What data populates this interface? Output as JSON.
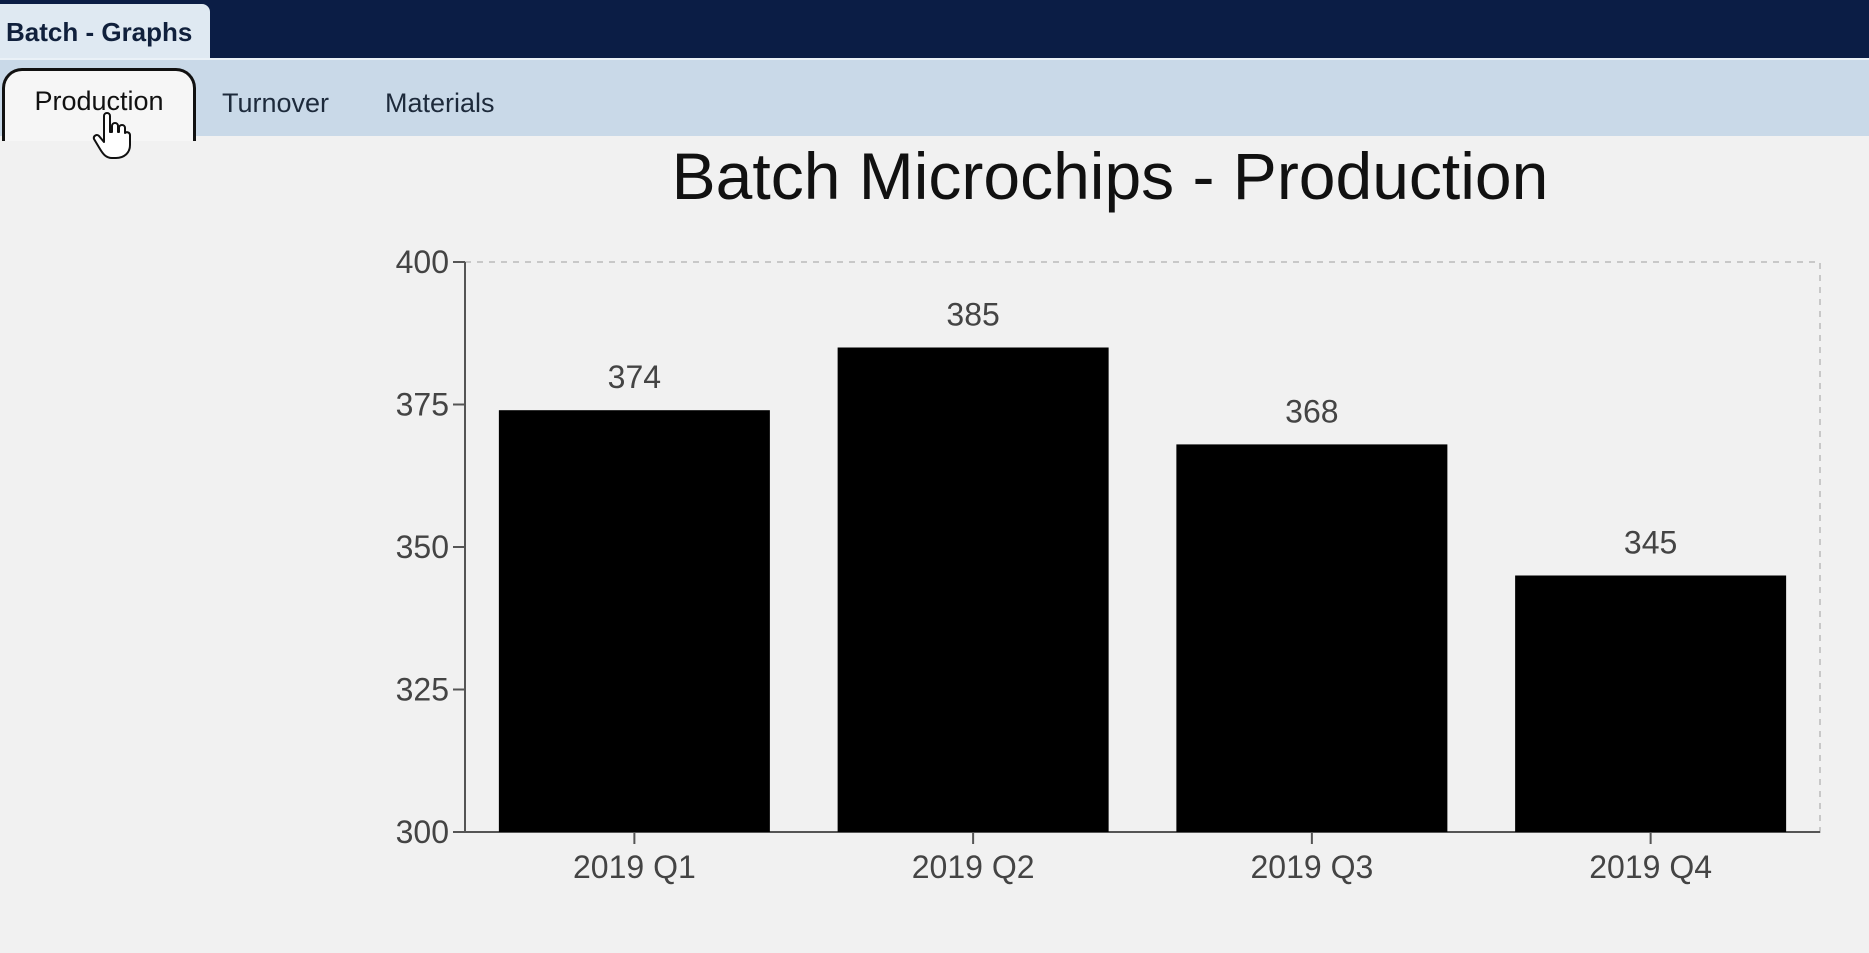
{
  "window": {
    "tab_title": "Batch - Graphs"
  },
  "tabs": [
    {
      "label": "Production",
      "active": true
    },
    {
      "label": "Turnover",
      "active": false
    },
    {
      "label": "Materials",
      "active": false
    }
  ],
  "colors": {
    "bar": "#000000",
    "topbar": "#0b1d45",
    "tabstrip": "#c9d9e8"
  },
  "icons": {
    "cursor": "hand-pointer-icon"
  },
  "chart_data": {
    "type": "bar",
    "title": "Batch Microchips - Production",
    "categories": [
      "2019 Q1",
      "2019 Q2",
      "2019 Q3",
      "2019 Q4"
    ],
    "values": [
      374,
      385,
      368,
      345
    ],
    "ylim": [
      300,
      400
    ],
    "yticks": [
      "300",
      "325",
      "350",
      "375",
      "400"
    ],
    "xlabel": "",
    "ylabel": "",
    "grid": false,
    "legend": "none"
  }
}
